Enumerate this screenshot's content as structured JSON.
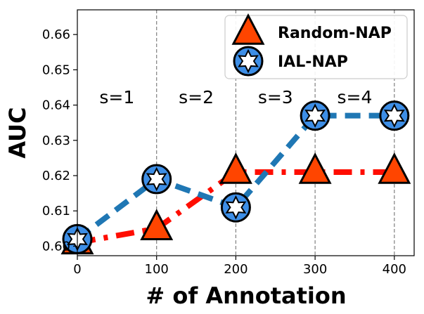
{
  "chart_data": {
    "type": "line",
    "xlabel": "# of Annotation",
    "ylabel": "AUC",
    "x": [
      0,
      100,
      200,
      300,
      400
    ],
    "x_ticks": [
      0,
      100,
      200,
      300,
      400
    ],
    "y_ticks": [
      0.6,
      0.61,
      0.62,
      0.63,
      0.64,
      0.65,
      0.66
    ],
    "y_tick_labels": [
      "0.60",
      "0.61",
      "0.62",
      "0.63",
      "0.64",
      "0.65",
      "0.66"
    ],
    "xlim": [
      0,
      425
    ],
    "ylim": [
      0.5973,
      0.667
    ],
    "grid": "vertical dashed at x = 100, 200, 300, 400",
    "stage_labels": [
      {
        "text": "s=1",
        "x": 50,
        "y": 0.6405
      },
      {
        "text": "s=2",
        "x": 150,
        "y": 0.6405
      },
      {
        "text": "s=3",
        "x": 250,
        "y": 0.6405
      },
      {
        "text": "s=4",
        "x": 350,
        "y": 0.6405
      }
    ],
    "legend_position": "top-right",
    "series": [
      {
        "name": "Random-NAP",
        "values": [
          0.601,
          0.605,
          0.621,
          0.621,
          0.621
        ],
        "line_color": "#ff0d00",
        "line_style": "dash-dot",
        "marker": "triangle",
        "marker_color": "#ff4500"
      },
      {
        "name": "IAL-NAP",
        "values": [
          0.602,
          0.619,
          0.611,
          0.637,
          0.637
        ],
        "line_color": "#1f77b4",
        "line_style": "dashed",
        "marker": "star-in-circle",
        "marker_color": "#3d8ee6"
      }
    ]
  }
}
